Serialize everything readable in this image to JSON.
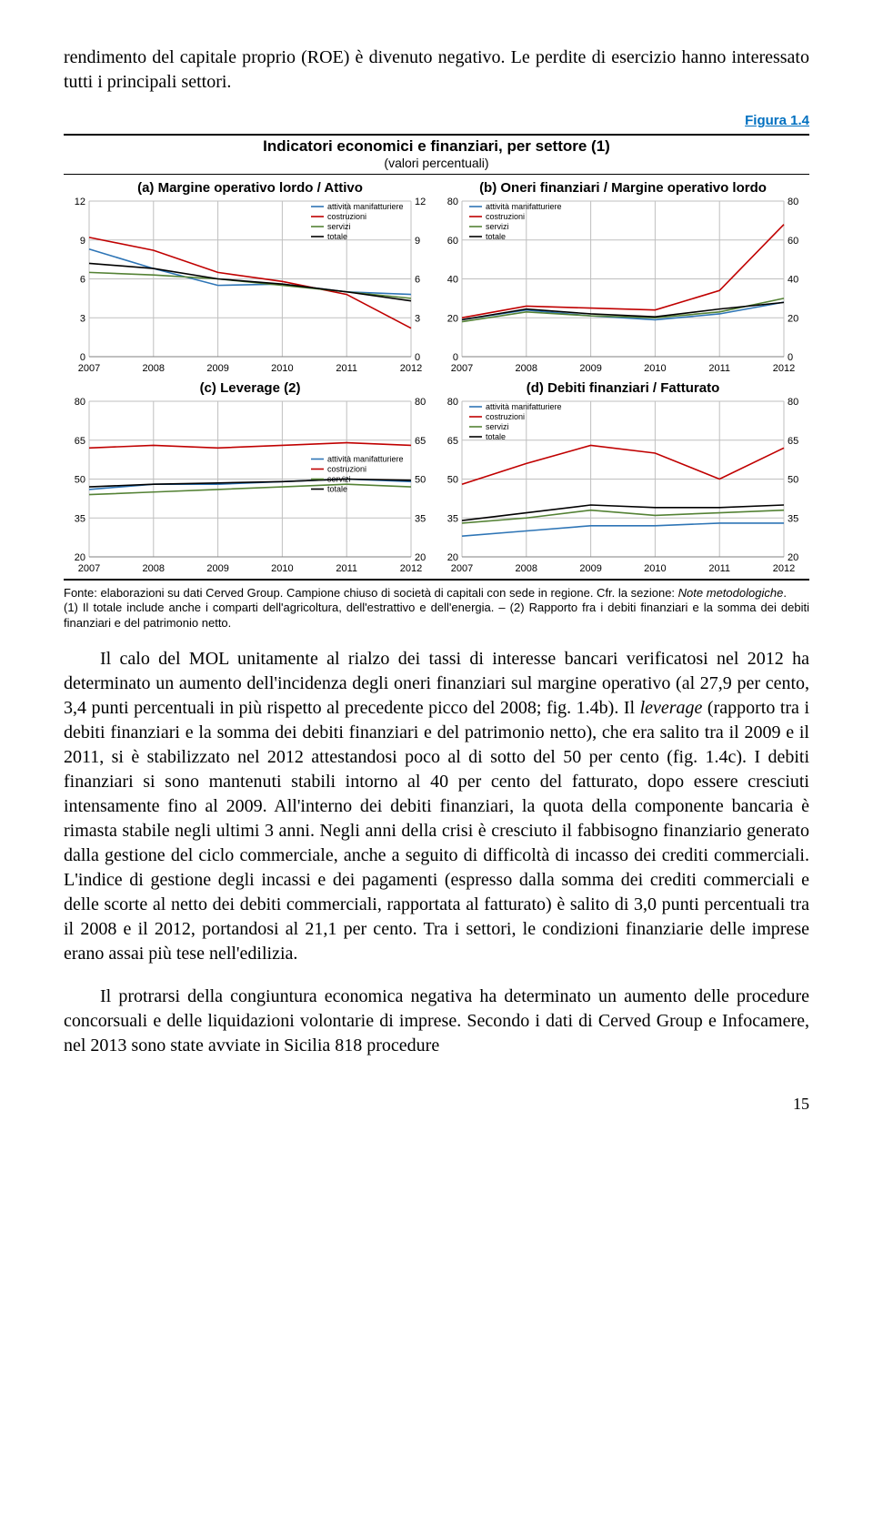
{
  "intro": "rendimento del capitale proprio (ROE) è divenuto negativo. Le perdite di esercizio hanno interessato tutti i principali settori.",
  "figure": {
    "label": "Figura 1.4",
    "title": "Indicatori economici e finanziari, per settore (1)",
    "subtitle": "(valori percentuali)",
    "years": [
      "2007",
      "2008",
      "2009",
      "2010",
      "2011",
      "2012"
    ],
    "series_labels": [
      "attività manifatturiere",
      "costruzioni",
      "servizi",
      "totale"
    ],
    "colors": {
      "manif": "#2e75b6",
      "costr": "#c00000",
      "servizi": "#548235",
      "totale": "#000000",
      "grid": "#bfbfbf",
      "axis": "#808080",
      "bg": "#ffffff"
    },
    "panel_a": {
      "title": "(a) Margine operativo lordo / Attivo",
      "ylim": [
        0,
        12
      ],
      "ytick_step": 3,
      "manif": [
        8.3,
        6.8,
        5.5,
        5.6,
        5.0,
        4.8
      ],
      "costr": [
        9.2,
        8.2,
        6.5,
        5.8,
        4.8,
        2.2
      ],
      "servizi": [
        6.5,
        6.3,
        6.0,
        5.5,
        5.0,
        4.5
      ],
      "totale": [
        7.2,
        6.8,
        6.0,
        5.6,
        5.0,
        4.3
      ],
      "legend_pos": "top-right"
    },
    "panel_b": {
      "title": "(b) Oneri finanziari / Margine operativo lordo",
      "ylim": [
        0,
        80
      ],
      "ytick_step": 20,
      "manif": [
        19,
        24,
        21,
        19,
        22,
        28
      ],
      "costr": [
        20,
        26,
        25,
        24,
        34,
        68
      ],
      "servizi": [
        18,
        23,
        21,
        20,
        23,
        30
      ],
      "totale": [
        19,
        24.5,
        22,
        20.5,
        24.5,
        27.9
      ],
      "legend_pos": "top-left"
    },
    "panel_c": {
      "title": "(c) Leverage (2)",
      "ylim": [
        20,
        80
      ],
      "ytick_step": 15,
      "manif": [
        46,
        48,
        48,
        49,
        50,
        49
      ],
      "costr": [
        62,
        63,
        62,
        63,
        64,
        63
      ],
      "servizi": [
        44,
        45,
        46,
        47,
        48,
        47
      ],
      "totale": [
        47,
        48,
        48.5,
        49,
        50,
        49.5
      ],
      "legend_pos": "mid-right"
    },
    "panel_d": {
      "title": "(d) Debiti finanziari / Fatturato",
      "ylim": [
        20,
        80
      ],
      "ytick_step": 15,
      "manif": [
        28,
        30,
        32,
        32,
        33,
        33
      ],
      "costr": [
        48,
        56,
        63,
        60,
        50,
        62
      ],
      "servizi": [
        33,
        35,
        38,
        36,
        37,
        38
      ],
      "totale": [
        34,
        37,
        40,
        39,
        39,
        40
      ],
      "legend_pos": "top-left"
    }
  },
  "footnotes": "Fonte: elaborazioni su dati Cerved Group. Campione chiuso di società di capitali con sede in regione. Cfr. la sezione: Note metodologiche.\n(1) Il totale include anche i comparti dell'agricoltura, dell'estrattivo e dell'energia. – (2) Rapporto fra i debiti finanziari e la somma dei debiti finanziari e del patrimonio netto.",
  "para1": "Il calo del MOL unitamente al rialzo dei tassi di interesse bancari verificatosi nel 2012 ha determinato un aumento dell'incidenza degli oneri finanziari sul margine operativo (al 27,9 per cento, 3,4 punti percentuali in più rispetto al precedente picco del 2008; fig. 1.4b). Il leverage (rapporto tra i debiti finanziari e la somma dei debiti finanziari e del patrimonio netto), che era salito tra il 2009 e il 2011, si è stabilizzato nel 2012 attestandosi poco al di sotto del 50 per cento (fig. 1.4c). I debiti finanziari si sono mantenuti stabili intorno al 40 per cento del fatturato, dopo essere cresciuti intensamente fino al 2009. All'interno dei debiti finanziari, la quota della componente bancaria è rimasta stabile negli ultimi 3 anni. Negli anni della crisi è cresciuto il fabbisogno finanziario generato dalla gestione del ciclo commerciale, anche a seguito di difficoltà di incasso dei crediti commerciali. L'indice di gestione degli incassi e dei pagamenti (espresso dalla somma dei crediti commerciali e delle scorte al netto dei debiti commerciali, rapportata al fatturato) è salito di 3,0 punti percentuali tra il 2008 e il 2012, portandosi al 21,1 per cento. Tra i settori, le condizioni finanziarie delle imprese erano assai più tese nell'edilizia.",
  "para2": "Il protrarsi della congiuntura economica negativa ha determinato un aumento delle procedure concorsuali e delle liquidazioni volontarie di imprese. Secondo i dati di Cerved Group e Infocamere, nel 2013 sono state avviate in Sicilia 818 procedure",
  "page_number": "15"
}
